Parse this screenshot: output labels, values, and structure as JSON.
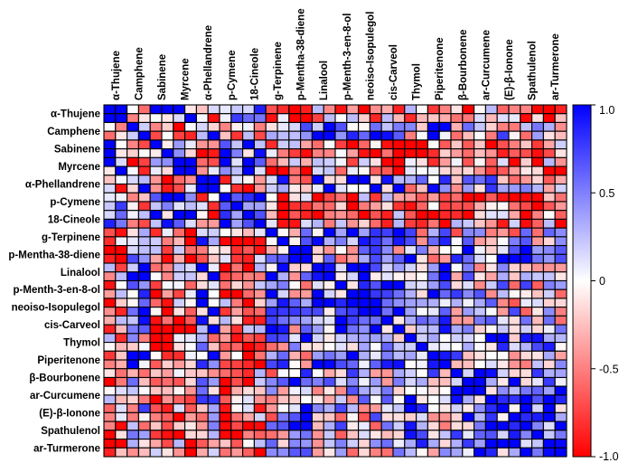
{
  "chart_data": {
    "type": "heatmap",
    "title": "",
    "variables": [
      "α-Thujene",
      "Camphene",
      "Sabinene",
      "Myrcene",
      "α-Phellandrene",
      "p-Cymene",
      "18-Cineole",
      "g-Terpinene",
      "p-Mentha-38-diene",
      "Linalool",
      "p-Menth-3-en-8-ol",
      "neoiso-Isopulegol",
      "cis-Carveol",
      "Thymol",
      "Piperitenone",
      "β-Bourbonene",
      "ar-Curcumene",
      "(E)-β-Ionone",
      "Spathulenol",
      "ar-Turmerone"
    ],
    "row_labels": [
      "α-Thujene",
      "Camphene",
      "Sabinene",
      "Myrcene",
      "α-Phellandrene",
      "p-Cymene",
      "18-Cineole",
      "g-Terpinene",
      "p-Mentha-38-diene",
      "Linalool",
      "p-Menth-3-en-8-ol",
      "neoiso-Isopulegol",
      "cis-Carveol",
      "Thymol",
      "Piperitenone",
      "β-Bourbonene",
      "ar-Curcumene",
      "(E)-β-Ionone",
      "Spathulenol",
      "ar-Turmerone"
    ],
    "col_labels": [
      "α-Thujene",
      "Camphene",
      "Sabinene",
      "Myrcene",
      "α-Phellandrene",
      "p-Cymene",
      "18-Cineole",
      "g-Terpinene",
      "p-Mentha-38-diene",
      "Linalool",
      "p-Menth-3-en-8-ol",
      "neoiso-Isopulegol",
      "cis-Carveol",
      "Thymol",
      "Piperitenone",
      "β-Bourbonene",
      "ar-Curcumene",
      "(E)-β-Ionone",
      "Spathulenol",
      "ar-Turmerone"
    ],
    "rows_per_variable": 2,
    "colorbar": {
      "min": -1.0,
      "max": 1.0,
      "ticks": [
        "1.0",
        "0.5",
        "0",
        "-0.5",
        "-1.0"
      ],
      "tick_values": [
        1.0,
        0.5,
        0,
        -0.5,
        -1.0
      ]
    },
    "colors": {
      "positive": "#1a1aff",
      "zero": "#ffffff",
      "negative": "#ff1a1a",
      "grid": "#000000"
    },
    "value_range": [
      -1,
      1
    ]
  }
}
